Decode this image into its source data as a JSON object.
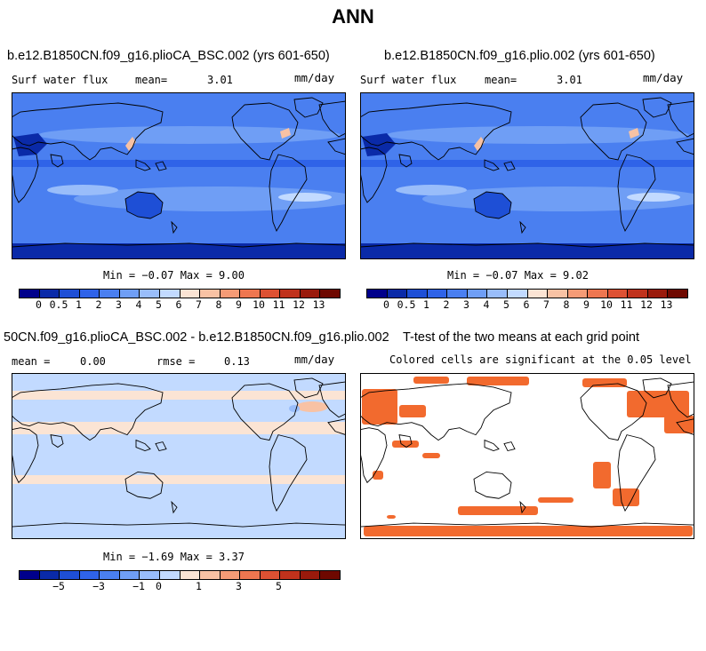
{
  "figure": {
    "title": "ANN"
  },
  "panels": [
    {
      "title": "b.e12.B1850CN.f09_g16.plioCA_BSC.002 (yrs 601-650)",
      "variable": "Surf water flux",
      "stat1_label": "mean=",
      "stat1_value": "3.01",
      "units": "mm/day",
      "minmax": "Min = −0.07 Max =   9.00"
    },
    {
      "title": "b.e12.B1850CN.f09_g16.plio.002 (yrs 601-650)",
      "variable": "Surf water flux",
      "stat1_label": "mean=",
      "stat1_value": "3.01",
      "units": "mm/day",
      "minmax": "Min = −0.07 Max =   9.02"
    },
    {
      "title": "50CN.f09_g16.plioCA_BSC.002 - b.e12.B1850CN.f09_g16.plio.002",
      "stat1_label": "mean =",
      "stat1_value": "0.00",
      "stat2_label": "rmse =",
      "stat2_value": "0.13",
      "units": "mm/day",
      "minmax": "Min = −1.69 Max =   3.37"
    },
    {
      "title": "T-test of the two means at each grid point",
      "subtitle": "Colored cells are significant at the 0.05 level"
    }
  ],
  "chart_data": [
    {
      "type": "heatmap",
      "title": "b.e12.B1850CN.f09_g16.plioCA_BSC.002 (yrs 601-650)",
      "variable": "Surf water flux",
      "units": "mm/day",
      "mean": 3.01,
      "min": -0.07,
      "max": 9.0,
      "colorbar_levels": [
        "0",
        "0.5",
        "1",
        "2",
        "3",
        "4",
        "5",
        "6",
        "7",
        "8",
        "9",
        "10",
        "11",
        "12",
        "13"
      ],
      "colors": [
        "#00008b",
        "#0a2aa8",
        "#1e4fd6",
        "#2f63e8",
        "#4a7ff0",
        "#6f9ef5",
        "#99bdfa",
        "#c2daff",
        "#fbe4d4",
        "#f8c2a4",
        "#f59b76",
        "#ee7650",
        "#dd5133",
        "#c0321c",
        "#9a1a0c",
        "#6e0800"
      ]
    },
    {
      "type": "heatmap",
      "title": "b.e12.B1850CN.f09_g16.plio.002 (yrs 601-650)",
      "variable": "Surf water flux",
      "units": "mm/day",
      "mean": 3.01,
      "min": -0.07,
      "max": 9.02,
      "colorbar_levels": [
        "0",
        "0.5",
        "1",
        "2",
        "3",
        "4",
        "5",
        "6",
        "7",
        "8",
        "9",
        "10",
        "11",
        "12",
        "13"
      ],
      "colors": [
        "#00008b",
        "#0a2aa8",
        "#1e4fd6",
        "#2f63e8",
        "#4a7ff0",
        "#6f9ef5",
        "#99bdfa",
        "#c2daff",
        "#fbe4d4",
        "#f8c2a4",
        "#f59b76",
        "#ee7650",
        "#dd5133",
        "#c0321c",
        "#9a1a0c",
        "#6e0800"
      ]
    },
    {
      "type": "heatmap",
      "title": "50CN.f09_g16.plioCA_BSC.002 - b.e12.B1850CN.f09_g16.plio.002",
      "units": "mm/day",
      "mean": 0.0,
      "rmse": 0.13,
      "min": -1.69,
      "max": 3.37,
      "colorbar_ticks": [
        {
          "label": "−5",
          "after": 2
        },
        {
          "label": "−3",
          "after": 4
        },
        {
          "label": "−1",
          "after": 6
        },
        {
          "label": "0",
          "after": 7
        },
        {
          "label": "1",
          "after": 9
        },
        {
          "label": "3",
          "after": 11
        },
        {
          "label": "5",
          "after": 13
        }
      ],
      "colors": [
        "#00008b",
        "#0a2aa8",
        "#1e4fd6",
        "#2f63e8",
        "#4a7ff0",
        "#6f9ef5",
        "#99bdfa",
        "#c2daff",
        "#fbe4d4",
        "#f8c2a4",
        "#f59b76",
        "#ee7650",
        "#dd5133",
        "#c0321c",
        "#9a1a0c",
        "#6e0800"
      ]
    },
    {
      "type": "heatmap",
      "title": "T-test of the two means at each grid point",
      "subtitle": "Colored cells are significant at the 0.05 level",
      "significant_color": "#f26a2e"
    }
  ]
}
